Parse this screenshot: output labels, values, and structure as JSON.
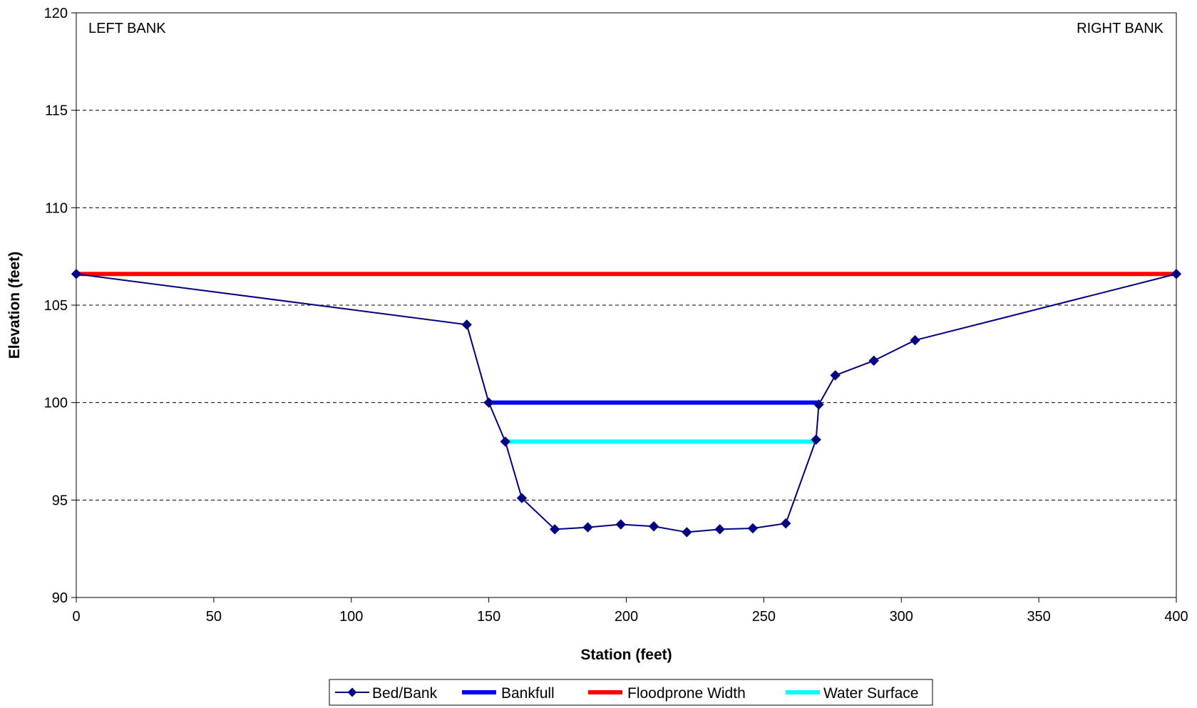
{
  "chart_data": {
    "type": "line",
    "title": "",
    "xlabel": "Station (feet)",
    "ylabel": "Elevation (feet)",
    "xlim": [
      0,
      400
    ],
    "ylim": [
      90,
      120
    ],
    "x_ticks": [
      0,
      50,
      100,
      150,
      200,
      250,
      300,
      350,
      400
    ],
    "y_ticks": [
      90,
      95,
      100,
      105,
      110,
      115,
      120
    ],
    "grid": "horizontal-dashed",
    "legend_position": "bottom-center",
    "annotations": [
      {
        "text": "LEFT BANK",
        "anchor": "top-left"
      },
      {
        "text": "RIGHT BANK",
        "anchor": "top-right"
      }
    ],
    "series": [
      {
        "name": "Bed/Bank",
        "color": "#000080",
        "marker": "diamond",
        "points": [
          [
            0,
            106.6
          ],
          [
            142,
            104.0
          ],
          [
            150,
            100.0
          ],
          [
            156,
            98.0
          ],
          [
            162,
            95.1
          ],
          [
            174,
            93.5
          ],
          [
            186,
            93.6
          ],
          [
            198,
            93.75
          ],
          [
            210,
            93.65
          ],
          [
            222,
            93.35
          ],
          [
            234,
            93.5
          ],
          [
            246,
            93.55
          ],
          [
            258,
            93.8
          ],
          [
            269,
            98.1
          ],
          [
            270,
            99.9
          ],
          [
            276,
            101.4
          ],
          [
            290,
            102.15
          ],
          [
            305,
            103.2
          ],
          [
            400,
            106.6
          ]
        ]
      },
      {
        "name": "Bankfull",
        "color": "#0000ff",
        "marker": "none",
        "points": [
          [
            150,
            100.0
          ],
          [
            270,
            100.0
          ]
        ]
      },
      {
        "name": "Floodprone Width",
        "color": "#ff0000",
        "marker": "none",
        "points": [
          [
            0,
            106.6
          ],
          [
            400,
            106.6
          ]
        ]
      },
      {
        "name": "Water Surface",
        "color": "#00ffff",
        "marker": "none",
        "points": [
          [
            156,
            98.0
          ],
          [
            269,
            98.0
          ]
        ]
      }
    ]
  }
}
